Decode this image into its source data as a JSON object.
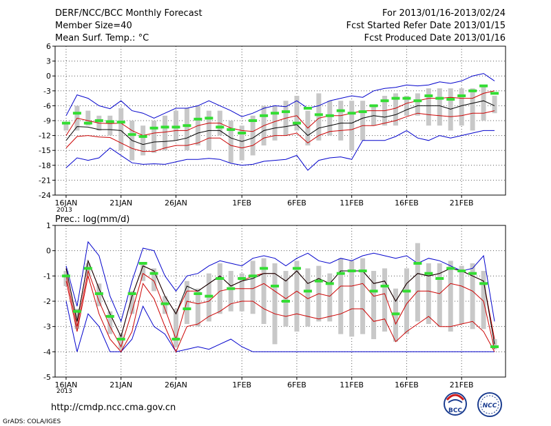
{
  "header": {
    "left_line1": "DERF/NCC/BCC Monthly Forecast",
    "left_line2": "Member Size=40",
    "left_line3": "Mean Surf. Temp.: °C",
    "right_line1": "For 2013/01/16-2013/02/24",
    "right_line2": "Fcst Started Refer Date 2013/01/15",
    "right_line3": "Fcst Produced Date 2013/01/16"
  },
  "footer": {
    "url": "http://cmdp.ncc.cma.gov.cn",
    "credit": "GrADS: COLA/IGES",
    "logo_left": "BCC",
    "logo_right": "NCC"
  },
  "colors": {
    "grid": "#555555",
    "envelope": "#0000cc",
    "quartile": "#cc0000",
    "median": "#000000",
    "bar": "#c8c8c8",
    "mean_marker": "#33dd33"
  },
  "chart_data": [
    {
      "type": "box-ensemble",
      "title": "Mean Surf. Temp.: °C",
      "x_tick_labels": [
        "16JAN",
        "21JAN",
        "26JAN",
        "1FEB",
        "6FEB",
        "11FEB",
        "16FEB",
        "21FEB"
      ],
      "x_tick_days": [
        0,
        5,
        10,
        16,
        21,
        26,
        31,
        36
      ],
      "x_year_label": "2013",
      "days": 40,
      "ylim": [
        -24,
        6
      ],
      "yticks": [
        -24,
        -21,
        -18,
        -15,
        -12,
        -9,
        -6,
        -3,
        0,
        3,
        6
      ],
      "grid": true,
      "series": {
        "max": [
          -8.0,
          -3.8,
          -4.5,
          -6.0,
          -6.6,
          -5.0,
          -7.0,
          -7.5,
          -8.5,
          -7.5,
          -6.5,
          -6.5,
          -6.0,
          -5.0,
          -6.0,
          -7.0,
          -8.2,
          -7.5,
          -6.5,
          -6.0,
          -6.2,
          -5.0,
          -6.5,
          -6.0,
          -5.0,
          -4.5,
          -4.0,
          -4.3,
          -3.0,
          -2.5,
          -2.3,
          -1.8,
          -2.0,
          -1.8,
          -1.2,
          -1.5,
          -1.0,
          0.0,
          0.5,
          -1.0
        ],
        "q75": [
          -12.0,
          -8.5,
          -9.0,
          -9.5,
          -9.6,
          -9.5,
          -11.0,
          -12.0,
          -11.5,
          -11.3,
          -11.0,
          -11.0,
          -10.0,
          -9.5,
          -9.5,
          -10.5,
          -11.0,
          -11.2,
          -10.0,
          -9.2,
          -8.5,
          -8.0,
          -10.5,
          -8.5,
          -8.0,
          -8.0,
          -7.5,
          -7.0,
          -7.0,
          -7.0,
          -6.5,
          -5.5,
          -5.0,
          -4.5,
          -4.5,
          -4.3,
          -4.5,
          -4.5,
          -3.5,
          -3.0
        ],
        "median": [
          -13.0,
          -10.2,
          -10.3,
          -10.8,
          -10.8,
          -11.0,
          -13.0,
          -13.8,
          -13.3,
          -13.2,
          -13.0,
          -12.5,
          -11.5,
          -11.0,
          -11.0,
          -12.5,
          -13.2,
          -12.5,
          -11.0,
          -10.5,
          -10.2,
          -9.8,
          -12.0,
          -10.5,
          -10.0,
          -9.5,
          -9.5,
          -8.5,
          -8.0,
          -8.3,
          -7.8,
          -6.8,
          -6.0,
          -6.0,
          -6.0,
          -6.7,
          -6.0,
          -5.5,
          -5.0,
          -6.0
        ],
        "q25": [
          -14.5,
          -12.2,
          -12.0,
          -12.3,
          -12.4,
          -13.5,
          -14.6,
          -15.2,
          -15.2,
          -14.5,
          -14.0,
          -14.0,
          -13.5,
          -12.5,
          -12.5,
          -14.0,
          -14.5,
          -14.0,
          -12.5,
          -12.0,
          -12.0,
          -11.5,
          -13.5,
          -12.0,
          -11.2,
          -11.0,
          -10.8,
          -10.0,
          -10.0,
          -9.5,
          -9.0,
          -8.2,
          -7.5,
          -7.8,
          -8.0,
          -8.2,
          -8.0,
          -7.5,
          -7.5,
          -7.0
        ],
        "min": [
          -18.5,
          -16.5,
          -17.0,
          -16.5,
          -14.5,
          -16.0,
          -17.5,
          -17.8,
          -17.7,
          -17.8,
          -17.3,
          -16.8,
          -16.8,
          -16.6,
          -16.8,
          -17.6,
          -18.0,
          -17.8,
          -17.2,
          -17.0,
          -16.8,
          -16.0,
          -19.0,
          -17.0,
          -16.5,
          -16.3,
          -16.8,
          -13.0,
          -13.0,
          -13.0,
          -12.2,
          -11.0,
          -12.5,
          -13.0,
          -12.0,
          -12.5,
          -12.0,
          -11.5,
          -11.0,
          -11.0
        ],
        "bar_top": [
          -9.5,
          -6.0,
          -7.0,
          -8.0,
          -8.0,
          -6.5,
          -9.0,
          -10.0,
          -9.0,
          -8.0,
          -7.0,
          -6.5,
          -6.0,
          -7.0,
          -7.0,
          -9.0,
          -10.0,
          -8.0,
          -6.0,
          -6.0,
          -5.0,
          -4.0,
          -7.0,
          -3.5,
          -5.0,
          -5.0,
          -5.0,
          -5.0,
          -6.0,
          -4.0,
          -3.5,
          -4.0,
          -3.5,
          -2.5,
          -2.5,
          -2.5,
          -2.5,
          -2.5,
          -2.0,
          -4.0
        ],
        "bar_bottom": [
          -11.0,
          -11.0,
          -10.0,
          -11.0,
          -12.0,
          -15.0,
          -17.0,
          -16.0,
          -15.5,
          -15.0,
          -13.0,
          -15.0,
          -14.0,
          -15.0,
          -12.0,
          -17.5,
          -17.0,
          -16.0,
          -14.0,
          -13.0,
          -12.0,
          -11.0,
          -14.0,
          -13.0,
          -12.0,
          -13.0,
          -15.0,
          -13.0,
          -10.0,
          -10.0,
          -10.0,
          -8.0,
          -8.0,
          -10.0,
          -10.0,
          -11.0,
          -10.0,
          -11.0,
          -9.0,
          -7.5
        ],
        "mean": [
          -9.5,
          -7.5,
          -9.5,
          -9.0,
          -9.2,
          -9.3,
          -11.8,
          -12.2,
          -10.5,
          -10.3,
          -10.3,
          -10.0,
          -8.7,
          -8.5,
          -10.3,
          -10.8,
          -11.5,
          -9.0,
          -8.0,
          -7.5,
          -7.2,
          -9.5,
          -6.5,
          -7.8,
          -8.0,
          -7.0,
          -7.5,
          -7.2,
          -6.0,
          -5.0,
          -4.5,
          -4.5,
          -5.0,
          -4.0,
          -4.5,
          -4.7,
          -4.0,
          -3.0,
          -2.0,
          -3.5
        ]
      }
    },
    {
      "type": "box-ensemble",
      "title": "Prec.: log(mm/d)",
      "x_tick_labels": [
        "16JAN",
        "21JAN",
        "26JAN",
        "1FEB",
        "6FEB",
        "11FEB",
        "16FEB",
        "21FEB"
      ],
      "x_tick_days": [
        0,
        5,
        10,
        16,
        21,
        26,
        31,
        36
      ],
      "x_year_label": "2013",
      "days": 40,
      "ylim": [
        -5,
        1
      ],
      "yticks": [
        -5,
        -4,
        -3,
        -2,
        -1,
        0,
        1
      ],
      "grid": true,
      "series": {
        "max": [
          -0.6,
          -2.2,
          0.35,
          -0.2,
          -1.8,
          -2.8,
          -1.2,
          0.1,
          0.0,
          -1.0,
          -1.6,
          -1.0,
          -0.9,
          -0.6,
          -0.4,
          -0.5,
          -0.6,
          -0.3,
          -0.2,
          -0.3,
          -0.6,
          -0.3,
          -0.1,
          -0.4,
          -0.5,
          -0.3,
          -0.4,
          -0.2,
          -0.1,
          -0.2,
          -0.3,
          -0.2,
          -0.5,
          -0.3,
          -0.4,
          -0.6,
          -0.8,
          -0.7,
          -0.2,
          -2.8
        ],
        "q75": [
          -0.7,
          -2.8,
          -0.4,
          -1.5,
          -2.5,
          -3.4,
          -1.8,
          -0.6,
          -0.8,
          -1.8,
          -2.5,
          -1.6,
          -1.6,
          -1.3,
          -1.0,
          -1.4,
          -1.2,
          -1.0,
          -0.9,
          -0.9,
          -1.2,
          -0.8,
          -1.3,
          -1.1,
          -1.3,
          -0.8,
          -0.8,
          -0.8,
          -1.3,
          -1.2,
          -2.0,
          -1.3,
          -0.9,
          -1.0,
          -0.9,
          -0.7,
          -0.8,
          -1.0,
          -1.2,
          -3.5
        ],
        "median": [
          -0.7,
          -2.8,
          -0.4,
          -1.5,
          -2.5,
          -3.4,
          -1.8,
          -0.6,
          -0.8,
          -1.8,
          -2.5,
          -1.4,
          -1.6,
          -1.3,
          -1.0,
          -1.4,
          -1.2,
          -1.1,
          -0.9,
          -0.9,
          -1.2,
          -0.8,
          -1.3,
          -1.1,
          -1.3,
          -0.8,
          -0.8,
          -0.8,
          -1.3,
          -1.2,
          -2.0,
          -1.3,
          -0.9,
          -1.0,
          -0.9,
          -0.7,
          -0.8,
          -1.0,
          -1.2,
          -3.7
        ],
        "q25": [
          -1.0,
          -3.0,
          -0.8,
          -2.0,
          -3.0,
          -3.8,
          -2.4,
          -0.9,
          -1.2,
          -2.3,
          -3.5,
          -2.0,
          -2.1,
          -2.0,
          -1.6,
          -1.5,
          -1.5,
          -1.5,
          -1.3,
          -1.6,
          -1.9,
          -1.6,
          -1.9,
          -1.7,
          -1.8,
          -1.4,
          -1.4,
          -1.3,
          -1.8,
          -1.7,
          -2.9,
          -2.1,
          -1.6,
          -1.6,
          -1.7,
          -1.3,
          -1.4,
          -1.6,
          -2.0,
          -3.9
        ],
        "q10": [
          -1.2,
          -3.2,
          -1.0,
          -2.5,
          -3.5,
          -4.0,
          -3.2,
          -1.3,
          -1.9,
          -3.0,
          -4.0,
          -3.0,
          -2.9,
          -2.6,
          -2.4,
          -2.1,
          -2.0,
          -2.0,
          -2.3,
          -2.5,
          -2.6,
          -2.5,
          -2.6,
          -2.7,
          -2.6,
          -2.5,
          -2.3,
          -2.3,
          -2.8,
          -2.7,
          -3.6,
          -3.2,
          -2.9,
          -2.6,
          -3.0,
          -3.0,
          -2.9,
          -2.8,
          -3.2,
          -4.0
        ],
        "min": [
          -2.0,
          -4.0,
          -2.5,
          -3.0,
          -4.0,
          -4.0,
          -3.5,
          -2.2,
          -3.0,
          -3.3,
          -4.0,
          -3.9,
          -3.8,
          -3.9,
          -3.7,
          -3.5,
          -3.8,
          -4.0,
          -4.0,
          -4.0,
          -4.0,
          -4.0,
          -4.0,
          -4.0,
          -4.0,
          -4.0,
          -4.0,
          -4.0,
          -4.0,
          -4.0,
          -4.0,
          -4.0,
          -4.0,
          -4.0,
          -4.0,
          -4.0,
          -4.0,
          -4.0,
          -4.0,
          -4.0
        ],
        "bar_top": [
          -0.8,
          -2.3,
          -0.5,
          -1.3,
          -2.4,
          -3.3,
          -1.6,
          -0.5,
          -0.7,
          -1.8,
          -2.3,
          -1.2,
          -1.5,
          -0.9,
          -0.5,
          -0.8,
          -0.9,
          -0.4,
          -0.3,
          -0.5,
          -0.8,
          -0.4,
          -0.7,
          -0.6,
          -0.9,
          -0.3,
          -0.4,
          -0.3,
          -0.8,
          -0.7,
          -1.5,
          -0.7,
          0.3,
          -0.5,
          -0.5,
          -0.4,
          -0.6,
          -0.5,
          -0.8,
          -3.5
        ],
        "bar_bottom": [
          -1.4,
          -3.1,
          -1.0,
          -2.2,
          -3.3,
          -3.9,
          -2.5,
          -1.2,
          -1.6,
          -2.5,
          -3.8,
          -2.9,
          -3.0,
          -2.8,
          -2.5,
          -2.4,
          -2.4,
          -2.5,
          -2.9,
          -3.7,
          -3.0,
          -3.2,
          -3.0,
          -2.8,
          -2.8,
          -3.3,
          -3.4,
          -3.3,
          -3.5,
          -3.2,
          -3.6,
          -3.3,
          -2.8,
          -2.9,
          -3.0,
          -3.2,
          -2.9,
          -3.1,
          -3.1,
          -3.9
        ],
        "mean": [
          -1.0,
          -2.4,
          -0.7,
          -1.7,
          -2.6,
          -3.5,
          -1.7,
          -0.5,
          -0.9,
          -2.1,
          -3.5,
          -2.3,
          -1.7,
          -1.8,
          -1.1,
          -1.5,
          -1.1,
          -1.0,
          -0.7,
          -1.4,
          -2.0,
          -0.7,
          -1.6,
          -1.2,
          -1.3,
          -0.9,
          -0.8,
          -0.8,
          -1.6,
          -1.4,
          -2.5,
          -1.6,
          -0.5,
          -0.9,
          -1.1,
          -0.7,
          -0.8,
          -0.9,
          -1.3,
          -3.8
        ]
      }
    }
  ]
}
